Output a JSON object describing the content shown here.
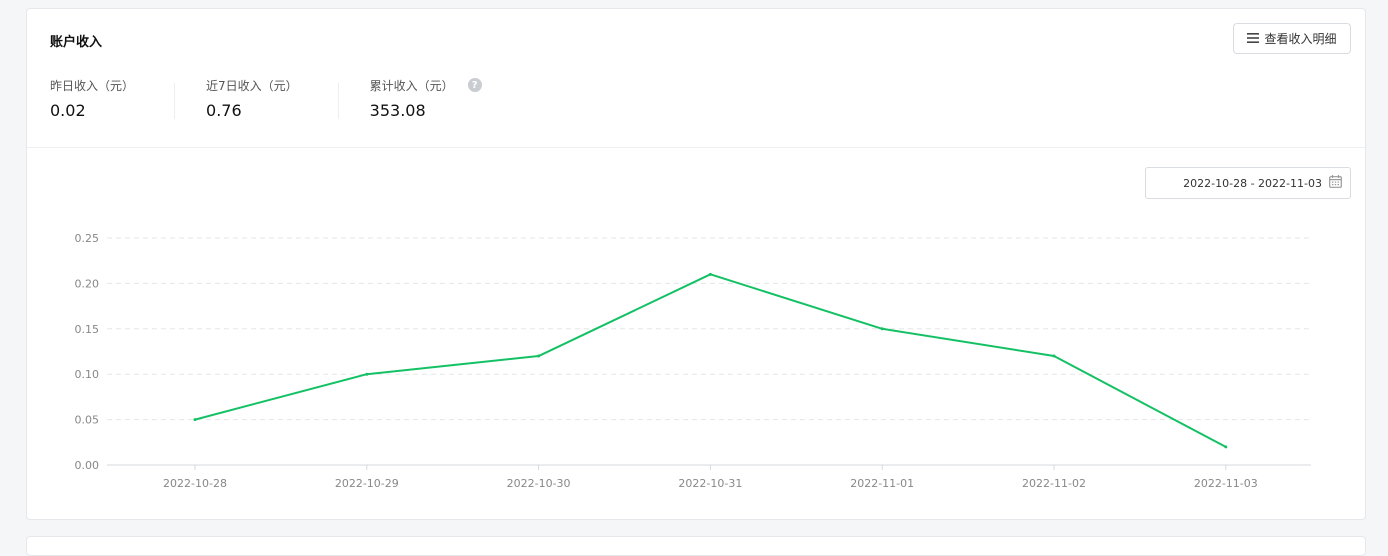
{
  "header": {
    "title": "账户收入",
    "detail_button_label": "查看收入明细"
  },
  "stats": [
    {
      "label": "昨日收入（元）",
      "value": "0.02"
    },
    {
      "label": "近7日收入（元）",
      "value": "0.76"
    },
    {
      "label": "累计收入（元）",
      "value": "353.08",
      "help_icon": "?"
    }
  ],
  "date_range": "2022-10-28 - 2022-11-03",
  "colors": {
    "line": "#13c164",
    "grid": "#e3e5e8"
  },
  "chart_data": {
    "type": "line",
    "x": [
      "2022-10-28",
      "2022-10-29",
      "2022-10-30",
      "2022-10-31",
      "2022-11-01",
      "2022-11-02",
      "2022-11-03"
    ],
    "values": [
      0.05,
      0.1,
      0.12,
      0.21,
      0.15,
      0.12,
      0.02
    ],
    "yticks": [
      "0.00",
      "0.05",
      "0.10",
      "0.15",
      "0.20",
      "0.25"
    ],
    "ylim": [
      0,
      0.25
    ],
    "grid": true,
    "title": "",
    "xlabel": "",
    "ylabel": ""
  }
}
